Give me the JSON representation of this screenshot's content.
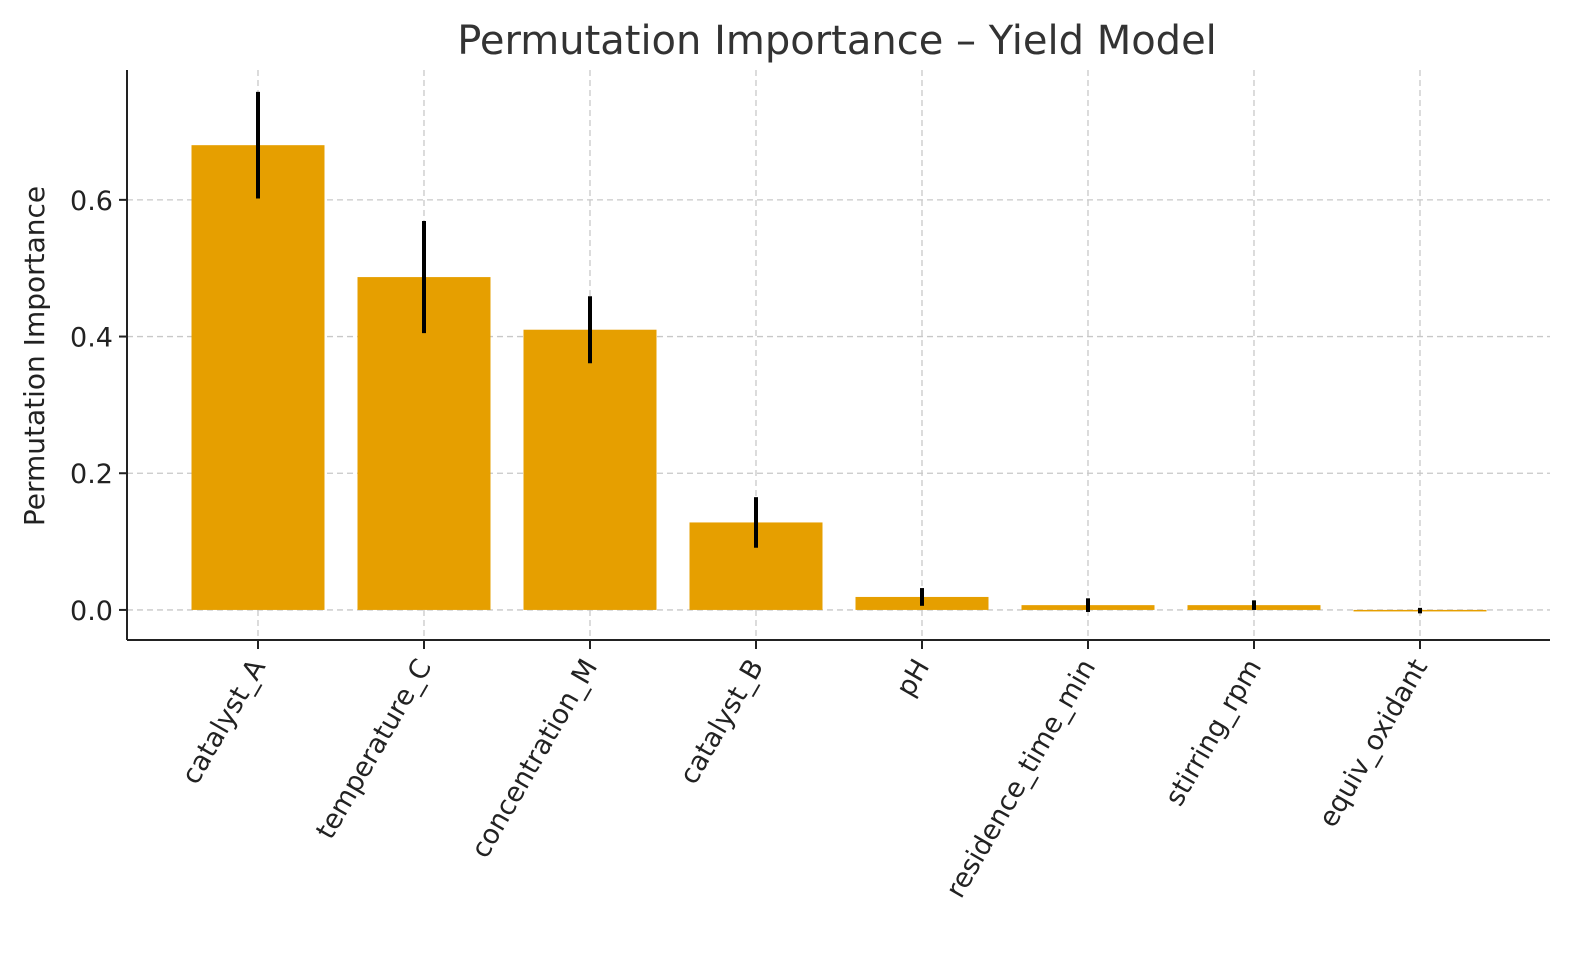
{
  "chart_data": {
    "type": "bar",
    "title": "Permutation Importance – Yield Model",
    "xlabel": "",
    "ylabel": "Permutation Importance",
    "categories": [
      "catalyst_A",
      "temperature_C",
      "concentration_M",
      "catalyst_B",
      "pH",
      "residence_time_min",
      "stirring_rpm",
      "equiv_oxidant"
    ],
    "values": [
      0.68,
      0.487,
      0.41,
      0.128,
      0.019,
      0.007,
      0.007,
      -0.001
    ],
    "errors": [
      0.078,
      0.082,
      0.049,
      0.037,
      0.013,
      0.01,
      0.007,
      0.004
    ],
    "ylim": [
      -0.044,
      0.79
    ],
    "yticks": [
      "0.0",
      "0.2",
      "0.4",
      "0.6"
    ],
    "ytick_values": [
      0.0,
      0.2,
      0.4,
      0.6
    ],
    "grid": true,
    "bar_color": "#E69F00",
    "error_color": "#000000"
  }
}
